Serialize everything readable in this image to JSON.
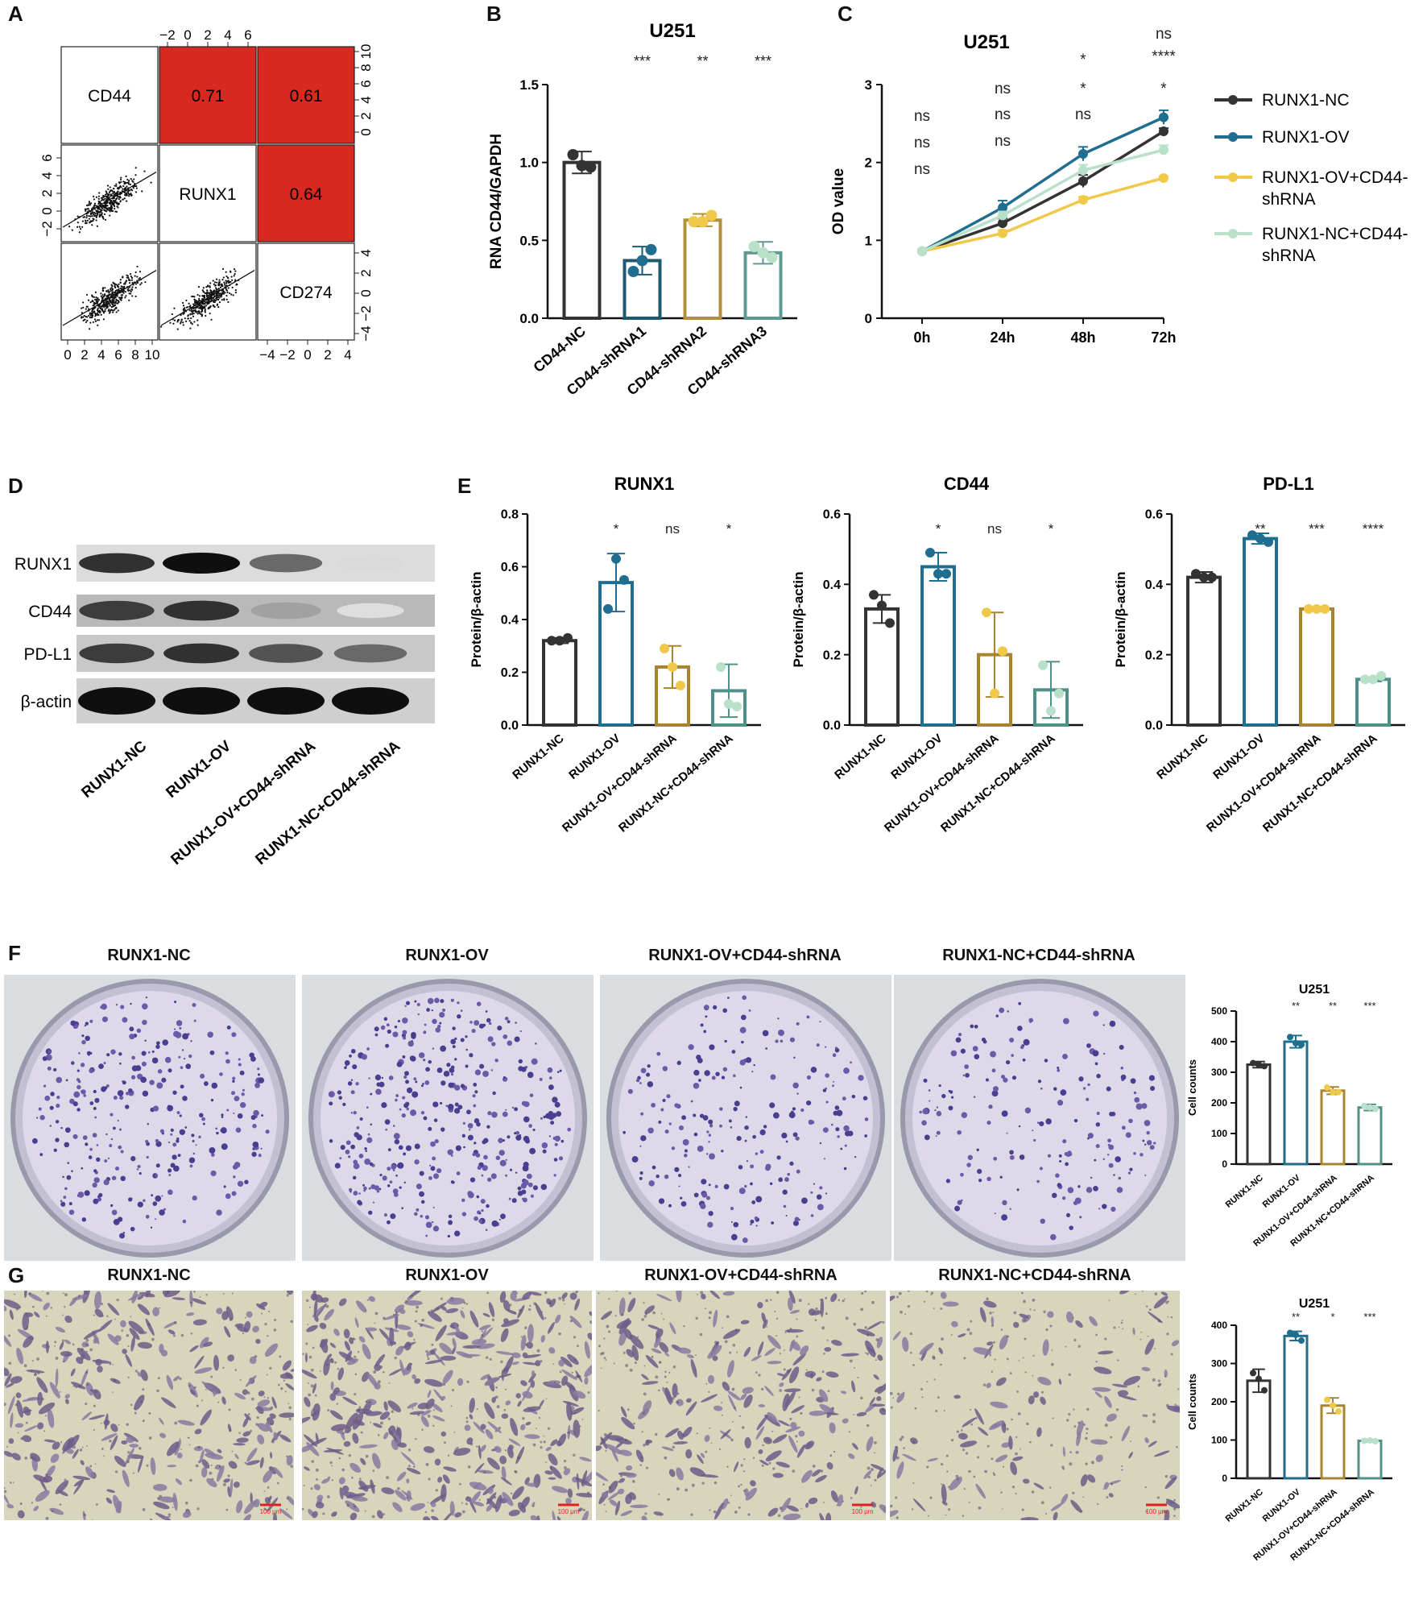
{
  "panel_letters": [
    "A",
    "B",
    "C",
    "D",
    "E",
    "F",
    "G"
  ],
  "colors": {
    "nc": "#333333",
    "ov": "#1f6e8f",
    "ov_sh": "#f1c94a",
    "nc_sh": "#b9e0c8",
    "b_sh1": "#1d5a70",
    "b_sh2": "#b2903e",
    "b_sh3": "#5f9a92",
    "corr_red": "#d9281f",
    "ov_bar": "#1f6e8f",
    "ovsh_bar": "#a88432",
    "ncsh_bar": "#4f9088"
  },
  "panel_a": {
    "variables": [
      "CD44",
      "RUNX1",
      "CD274"
    ],
    "correlations": [
      {
        "row": 0,
        "col": 1,
        "value": "0.71"
      },
      {
        "row": 0,
        "col": 2,
        "value": "0.61"
      },
      {
        "row": 1,
        "col": 2,
        "value": "0.64"
      }
    ],
    "top_ticks": [
      "−2",
      "0",
      "2",
      "4",
      "6"
    ],
    "right_ticks_top": [
      "0",
      "2",
      "4",
      "6",
      "8",
      "10"
    ],
    "left_ticks_mid": [
      "−2",
      "0",
      "2",
      "4",
      "6"
    ],
    "right_ticks_bottom": [
      "−4",
      "−2",
      "0",
      "2",
      "4"
    ],
    "bottom_ticks_left": [
      "0",
      "2",
      "4",
      "6",
      "8",
      "10"
    ],
    "bottom_ticks_right": [
      "−4",
      "−2",
      "0",
      "2",
      "4"
    ]
  },
  "chart_data": [
    {
      "id": "B",
      "type": "bar",
      "title": "U251",
      "ylabel": "RNA CD44/GAPDH",
      "categories": [
        "CD44-NC",
        "CD44-shRNA1",
        "CD44-shRNA2",
        "CD44-shRNA3"
      ],
      "values": [
        1.0,
        0.37,
        0.63,
        0.42
      ],
      "errors": [
        0.07,
        0.09,
        0.04,
        0.07
      ],
      "points": [
        [
          1.05,
          0.97,
          0.98
        ],
        [
          0.3,
          0.44,
          0.37
        ],
        [
          0.62,
          0.66,
          0.62
        ],
        [
          0.46,
          0.39,
          0.42
        ]
      ],
      "significance": [
        "",
        "***",
        "**",
        "***"
      ],
      "ylim": [
        0,
        1.5
      ],
      "yticks": [
        "0.0",
        "0.5",
        "1.0",
        "1.5"
      ]
    },
    {
      "id": "C",
      "type": "line",
      "title": "U251",
      "ylabel": "OD value",
      "x": [
        "0h",
        "24h",
        "48h",
        "72h"
      ],
      "ylim": [
        0,
        3
      ],
      "yticks": [
        "0",
        "1",
        "2",
        "3"
      ],
      "series": [
        {
          "name": "RUNX1-NC",
          "values": [
            0.86,
            1.22,
            1.76,
            2.4
          ],
          "errors": [
            0.02,
            0.06,
            0.08,
            0.04
          ]
        },
        {
          "name": "RUNX1-OV",
          "values": [
            0.86,
            1.42,
            2.11,
            2.58
          ],
          "errors": [
            0.02,
            0.09,
            0.09,
            0.09
          ]
        },
        {
          "name": "RUNX1-OV+CD44-shRNA",
          "values": [
            0.86,
            1.09,
            1.52,
            1.8
          ],
          "errors": [
            0.02,
            0.04,
            0.04,
            0.02
          ]
        },
        {
          "name": "RUNX1-NC+CD44-shRNA",
          "values": [
            0.86,
            1.32,
            1.9,
            2.16
          ],
          "errors": [
            0.02,
            0.05,
            0.07,
            0.06
          ]
        }
      ],
      "significance_rows": [
        [
          "ns",
          "ns",
          "*",
          "*"
        ],
        [
          "ns",
          "ns",
          "ns",
          "****"
        ],
        [
          "ns",
          "",
          "*",
          "ns"
        ]
      ]
    },
    {
      "id": "E1",
      "type": "bar",
      "title": "RUNX1",
      "ylabel": "Protein/β-actin",
      "categories": [
        "RUNX1-NC",
        "RUNX1-OV",
        "RUNX1-OV+CD44-shRNA",
        "RUNX1-NC+CD44-shRNA"
      ],
      "values": [
        0.32,
        0.54,
        0.22,
        0.13
      ],
      "errors": [
        0.01,
        0.11,
        0.08,
        0.1
      ],
      "points": [
        [
          0.32,
          0.33,
          0.32
        ],
        [
          0.44,
          0.55,
          0.63
        ],
        [
          0.29,
          0.15,
          0.22
        ],
        [
          0.22,
          0.07,
          0.08
        ]
      ],
      "significance": [
        "",
        "*",
        "ns",
        "*"
      ],
      "ylim": [
        0,
        0.8
      ],
      "yticks": [
        "0.0",
        "0.2",
        "0.4",
        "0.6",
        "0.8"
      ]
    },
    {
      "id": "E2",
      "type": "bar",
      "title": "CD44",
      "ylabel": "Protein/β-actin",
      "categories": [
        "RUNX1-NC",
        "RUNX1-OV",
        "RUNX1-OV+CD44-shRNA",
        "RUNX1-NC+CD44-shRNA"
      ],
      "values": [
        0.33,
        0.45,
        0.2,
        0.1
      ],
      "errors": [
        0.04,
        0.04,
        0.12,
        0.08
      ],
      "points": [
        [
          0.37,
          0.29,
          0.34
        ],
        [
          0.49,
          0.43,
          0.43
        ],
        [
          0.32,
          0.21,
          0.09
        ],
        [
          0.17,
          0.09,
          0.04
        ]
      ],
      "significance": [
        "",
        "*",
        "ns",
        "*"
      ],
      "ylim": [
        0,
        0.6
      ],
      "yticks": [
        "0.0",
        "0.2",
        "0.4",
        "0.6"
      ]
    },
    {
      "id": "E3",
      "type": "bar",
      "title": "PD-L1",
      "ylabel": "Protein/β-actin",
      "categories": [
        "RUNX1-NC",
        "RUNX1-OV",
        "RUNX1-OV+CD44-shRNA",
        "RUNX1-NC+CD44-shRNA"
      ],
      "values": [
        0.42,
        0.53,
        0.33,
        0.13
      ],
      "errors": [
        0.015,
        0.015,
        0.004,
        0.006
      ],
      "points": [
        [
          0.43,
          0.42,
          0.42
        ],
        [
          0.54,
          0.52,
          0.53
        ],
        [
          0.33,
          0.33,
          0.33
        ],
        [
          0.13,
          0.14,
          0.13
        ]
      ],
      "significance": [
        "",
        "**",
        "***",
        "****"
      ],
      "ylim": [
        0,
        0.6
      ],
      "yticks": [
        "0.0",
        "0.2",
        "0.4",
        "0.6"
      ]
    },
    {
      "id": "F",
      "type": "bar",
      "title": "U251",
      "ylabel": "Cell counts",
      "categories": [
        "RUNX1-NC",
        "RUNX1-OV",
        "RUNX1-OV+CD44-shRNA",
        "RUNX1-NC+CD44-shRNA"
      ],
      "values": [
        325,
        400,
        240,
        185
      ],
      "errors": [
        10,
        20,
        12,
        10
      ],
      "points": [
        [
          330,
          320,
          325
        ],
        [
          415,
          390,
          395
        ],
        [
          250,
          235,
          235
        ],
        [
          190,
          180,
          185
        ]
      ],
      "significance": [
        "",
        "**",
        "**",
        "***"
      ],
      "ylim": [
        0,
        500
      ],
      "yticks": [
        "0",
        "100",
        "200",
        "300",
        "400",
        "500"
      ]
    },
    {
      "id": "G",
      "type": "bar",
      "title": "U251",
      "ylabel": "Cell counts",
      "categories": [
        "RUNX1-NC",
        "RUNX1-OV",
        "RUNX1-OV+CD44-shRNA",
        "RUNX1-NC+CD44-shRNA"
      ],
      "values": [
        255,
        372,
        190,
        98
      ],
      "errors": [
        30,
        12,
        20,
        3
      ],
      "points": [
        [
          275,
          230,
          260
        ],
        [
          380,
          360,
          375
        ],
        [
          205,
          175,
          190
        ],
        [
          98,
          97,
          99
        ]
      ],
      "significance": [
        "",
        "**",
        "*",
        "***"
      ],
      "ylim": [
        0,
        400
      ],
      "yticks": [
        "0",
        "100",
        "200",
        "300",
        "400"
      ]
    }
  ],
  "panel_d": {
    "rows": [
      "RUNX1",
      "CD44",
      "PD-L1",
      "β-actin"
    ],
    "lanes": [
      "RUNX1-NC",
      "RUNX1-OV",
      "RUNX1-OV+CD44-shRNA",
      "RUNX1-NC+CD44-shRNA"
    ],
    "intensities": [
      [
        0.85,
        1.0,
        0.6,
        0.1
      ],
      [
        0.8,
        0.85,
        0.35,
        0.08
      ],
      [
        0.8,
        0.85,
        0.7,
        0.6
      ],
      [
        1.0,
        1.0,
        1.0,
        1.0
      ]
    ]
  },
  "panel_f": {
    "titles": [
      "RUNX1-NC",
      "RUNX1-OV",
      "RUNX1-OV+CD44-shRNA",
      "RUNX1-NC+CD44-shRNA"
    ],
    "colony_density": [
      0.75,
      0.95,
      0.55,
      0.45
    ]
  },
  "panel_g": {
    "titles": [
      "RUNX1-NC",
      "RUNX1-OV",
      "RUNX1-OV+CD44-shRNA",
      "RUNX1-NC+CD44-shRNA"
    ],
    "cell_density": [
      0.75,
      1.0,
      0.6,
      0.3
    ],
    "scale_label": "100 μm"
  }
}
